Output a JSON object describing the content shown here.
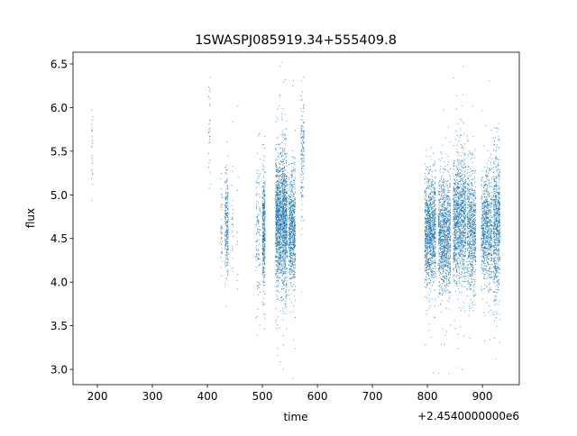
{
  "chart_data": {
    "type": "scatter",
    "title": "1SWASPJ085919.34+555409.8",
    "xlabel": "time",
    "ylabel": "flux",
    "x_offset_label": "+2.4540000000e6",
    "xlim": [
      155.7,
      967
    ],
    "ylim": [
      2.825,
      6.634
    ],
    "xticks": [
      200,
      300,
      400,
      500,
      600,
      700,
      800,
      900
    ],
    "yticks": [
      3.0,
      3.5,
      4.0,
      4.5,
      5.0,
      5.5,
      6.0,
      6.5
    ],
    "ytick_labels": [
      "3.0",
      "3.5",
      "4.0",
      "4.5",
      "5.0",
      "5.5",
      "6.0",
      "6.5"
    ],
    "grid": false,
    "color": "#1f77b4",
    "note_points": "dense light-curve; points summarized as observation clusters (time range, mean flux, flux spread, point count)",
    "clusters": [
      {
        "x": [
          189,
          192
        ],
        "y_mean": 5.6,
        "y_sd": 0.3,
        "n": 25
      },
      {
        "x": [
          402,
          406
        ],
        "y_mean": 5.8,
        "y_sd": 0.3,
        "n": 30
      },
      {
        "x": [
          424,
          427
        ],
        "y_mean": 4.6,
        "y_sd": 0.3,
        "n": 40
      },
      {
        "x": [
          432,
          438
        ],
        "y_mean": 4.65,
        "y_sd": 0.25,
        "n": 250
      },
      {
        "x": [
          444,
          447
        ],
        "y_mean": 4.7,
        "y_sd": 0.35,
        "n": 25
      },
      {
        "x": [
          453,
          456
        ],
        "y_mean": 4.5,
        "y_sd": 0.5,
        "n": 10
      },
      {
        "x": [
          488,
          496
        ],
        "y_mean": 4.55,
        "y_sd": 0.45,
        "n": 120
      },
      {
        "x": [
          500,
          505
        ],
        "y_mean": 4.6,
        "y_sd": 0.35,
        "n": 400
      },
      {
        "x": [
          524,
          534
        ],
        "y_mean": 4.7,
        "y_sd": 0.35,
        "n": 900
      },
      {
        "x": [
          535,
          545
        ],
        "y_mean": 4.7,
        "y_sd": 0.4,
        "n": 900
      },
      {
        "x": [
          548,
          560
        ],
        "y_mean": 4.6,
        "y_sd": 0.3,
        "n": 700
      },
      {
        "x": [
          570,
          576
        ],
        "y_mean": 5.5,
        "y_sd": 0.35,
        "n": 150
      },
      {
        "x": [
          795,
          815
        ],
        "y_mean": 4.6,
        "y_sd": 0.3,
        "n": 1100
      },
      {
        "x": [
          820,
          842
        ],
        "y_mean": 4.55,
        "y_sd": 0.32,
        "n": 1100
      },
      {
        "x": [
          847,
          870
        ],
        "y_mean": 4.7,
        "y_sd": 0.35,
        "n": 1200
      },
      {
        "x": [
          872,
          888
        ],
        "y_mean": 4.6,
        "y_sd": 0.35,
        "n": 700
      },
      {
        "x": [
          898,
          918
        ],
        "y_mean": 4.6,
        "y_sd": 0.3,
        "n": 800
      },
      {
        "x": [
          920,
          932
        ],
        "y_mean": 4.65,
        "y_sd": 0.4,
        "n": 700
      }
    ]
  }
}
